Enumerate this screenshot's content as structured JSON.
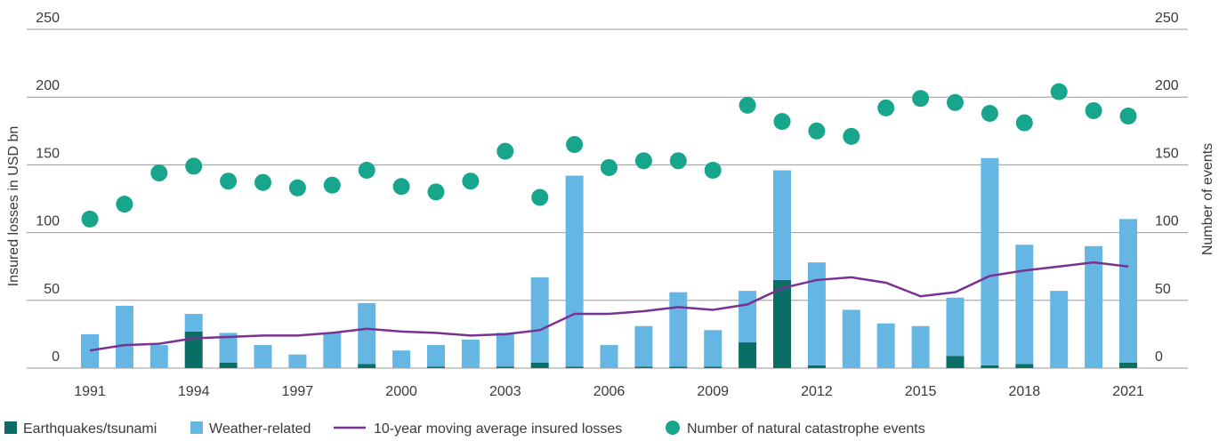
{
  "chart_data": {
    "type": "bar",
    "stacked": true,
    "y_label": "Insured losses in USD bn",
    "y2_label": "Number of events",
    "categories": [
      "1991",
      null,
      null,
      "1994",
      null,
      null,
      "1997",
      null,
      null,
      "2000",
      null,
      null,
      "2003",
      null,
      null,
      "2006",
      null,
      null,
      "2009",
      null,
      null,
      "2012",
      null,
      null,
      "2015",
      null,
      null,
      "2018",
      null,
      null,
      "2021"
    ],
    "series": [
      {
        "name": "Earthquakes/tsunami",
        "type": "bar",
        "color": "#0b6e64",
        "values": [
          0,
          0,
          0,
          27,
          4,
          0,
          0,
          0,
          3,
          0,
          1,
          0,
          1,
          4,
          1,
          0,
          1,
          1,
          1,
          19,
          65,
          2,
          0,
          0,
          0,
          9,
          2,
          3,
          0,
          0,
          4
        ]
      },
      {
        "name": "Weather-related",
        "type": "bar",
        "color": "#66b6e4",
        "values": [
          25,
          46,
          17,
          13,
          22,
          17,
          10,
          26,
          45,
          13,
          16,
          21,
          25,
          63,
          141,
          17,
          30,
          55,
          27,
          38,
          81,
          76,
          43,
          33,
          31,
          43,
          153,
          88,
          57,
          90,
          106
        ]
      },
      {
        "name": "10-year moving average insured losses",
        "type": "line",
        "color": "#7a3191",
        "values": [
          13,
          17,
          18,
          22,
          23,
          24,
          24,
          26,
          29,
          27,
          26,
          24,
          25,
          28,
          40,
          40,
          42,
          45,
          43,
          47,
          59,
          65,
          67,
          63,
          53,
          56,
          68,
          72,
          75,
          78,
          75
        ]
      },
      {
        "name": "Number of natural catastrophe events",
        "type": "scatter",
        "axis": "y2",
        "color": "#17a68b",
        "values": [
          110,
          121,
          144,
          149,
          138,
          137,
          133,
          135,
          146,
          134,
          130,
          138,
          160,
          126,
          165,
          148,
          153,
          153,
          146,
          194,
          182,
          175,
          171,
          192,
          199,
          196,
          188,
          181,
          204,
          190,
          186
        ]
      }
    ],
    "ylim": [
      0,
      250
    ],
    "yticks": [
      0,
      50,
      100,
      150,
      200,
      250
    ],
    "y2lim": [
      0,
      250
    ],
    "y2ticks": [
      0,
      50,
      100,
      150,
      200,
      250
    ],
    "grid": true
  }
}
